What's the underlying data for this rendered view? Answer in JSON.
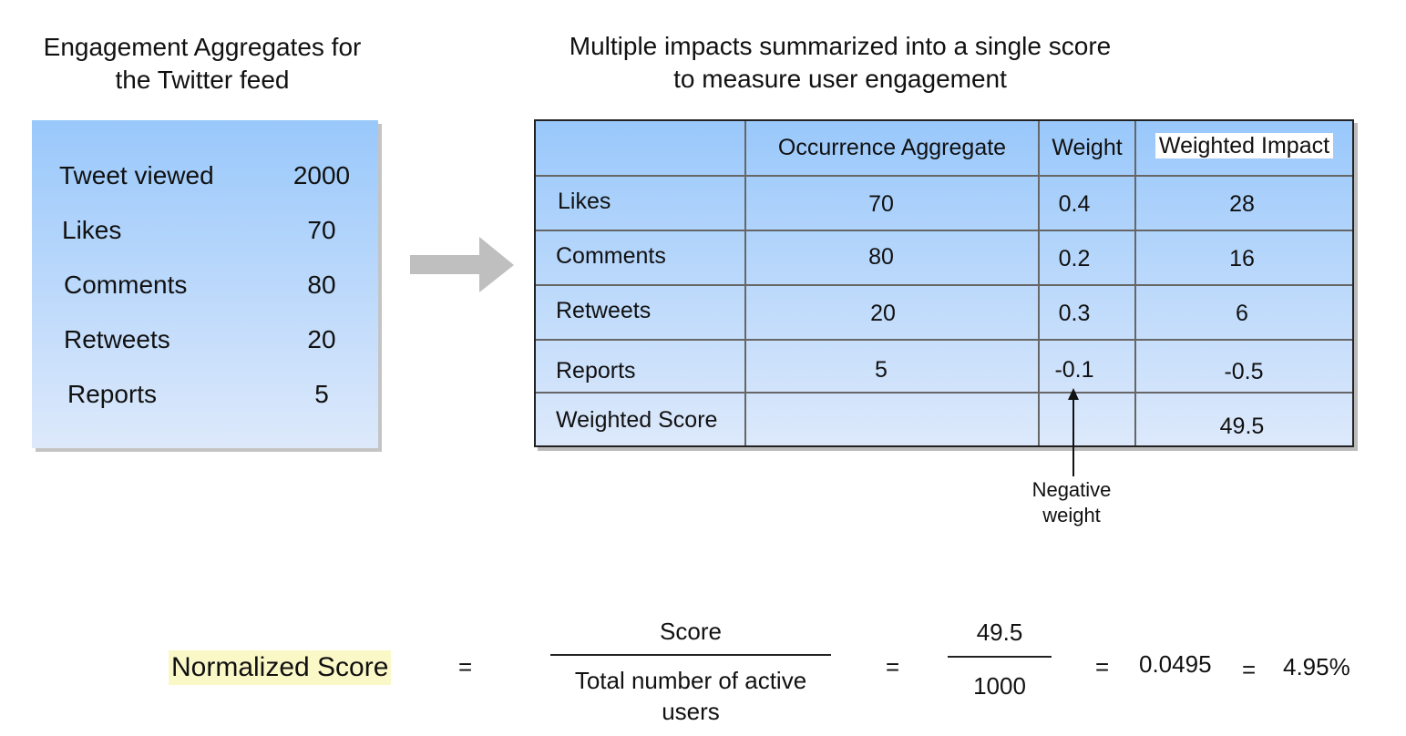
{
  "left_panel": {
    "title_line1": "Engagement Aggregates for",
    "title_line2": "the Twitter feed",
    "rows": [
      {
        "label": "Tweet viewed",
        "value": "2000"
      },
      {
        "label": "Likes",
        "value": "70"
      },
      {
        "label": "Comments",
        "value": "80"
      },
      {
        "label": "Retweets",
        "value": "20"
      },
      {
        "label": "Reports",
        "value": "5"
      }
    ]
  },
  "right_panel": {
    "title_line1": "Multiple impacts summarized into a single score",
    "title_line2": "to measure user engagement",
    "headers": [
      "",
      "Occurrence Aggregate",
      "Weight",
      "Weighted Impact"
    ],
    "rows": [
      {
        "metric": "Likes",
        "occurrence": "70",
        "weight": "0.4",
        "impact": "28"
      },
      {
        "metric": "Comments",
        "occurrence": "80",
        "weight": "0.2",
        "impact": "16"
      },
      {
        "metric": "Retweets",
        "occurrence": "20",
        "weight": "0.3",
        "impact": "6"
      },
      {
        "metric": "Reports",
        "occurrence": "5",
        "weight": "-0.1",
        "impact": "-0.5"
      }
    ],
    "total": {
      "label": "Weighted Score",
      "impact": "49.5"
    }
  },
  "annotation": {
    "line1": "Negative",
    "line2": "weight"
  },
  "formula": {
    "lhs": "Normalized Score",
    "eq": "=",
    "frac1_num": "Score",
    "frac1_den_line1": "Total number of active",
    "frac1_den_line2": "users",
    "frac2_num": "49.5",
    "frac2_den": "1000",
    "decimal": "0.0495",
    "percent": "4.95%"
  },
  "colors": {
    "gradient_top": "#99c8fb",
    "gradient_bottom": "#dde9fb",
    "highlight": "#fbf8c8",
    "arrow": "#bfbfbf"
  }
}
